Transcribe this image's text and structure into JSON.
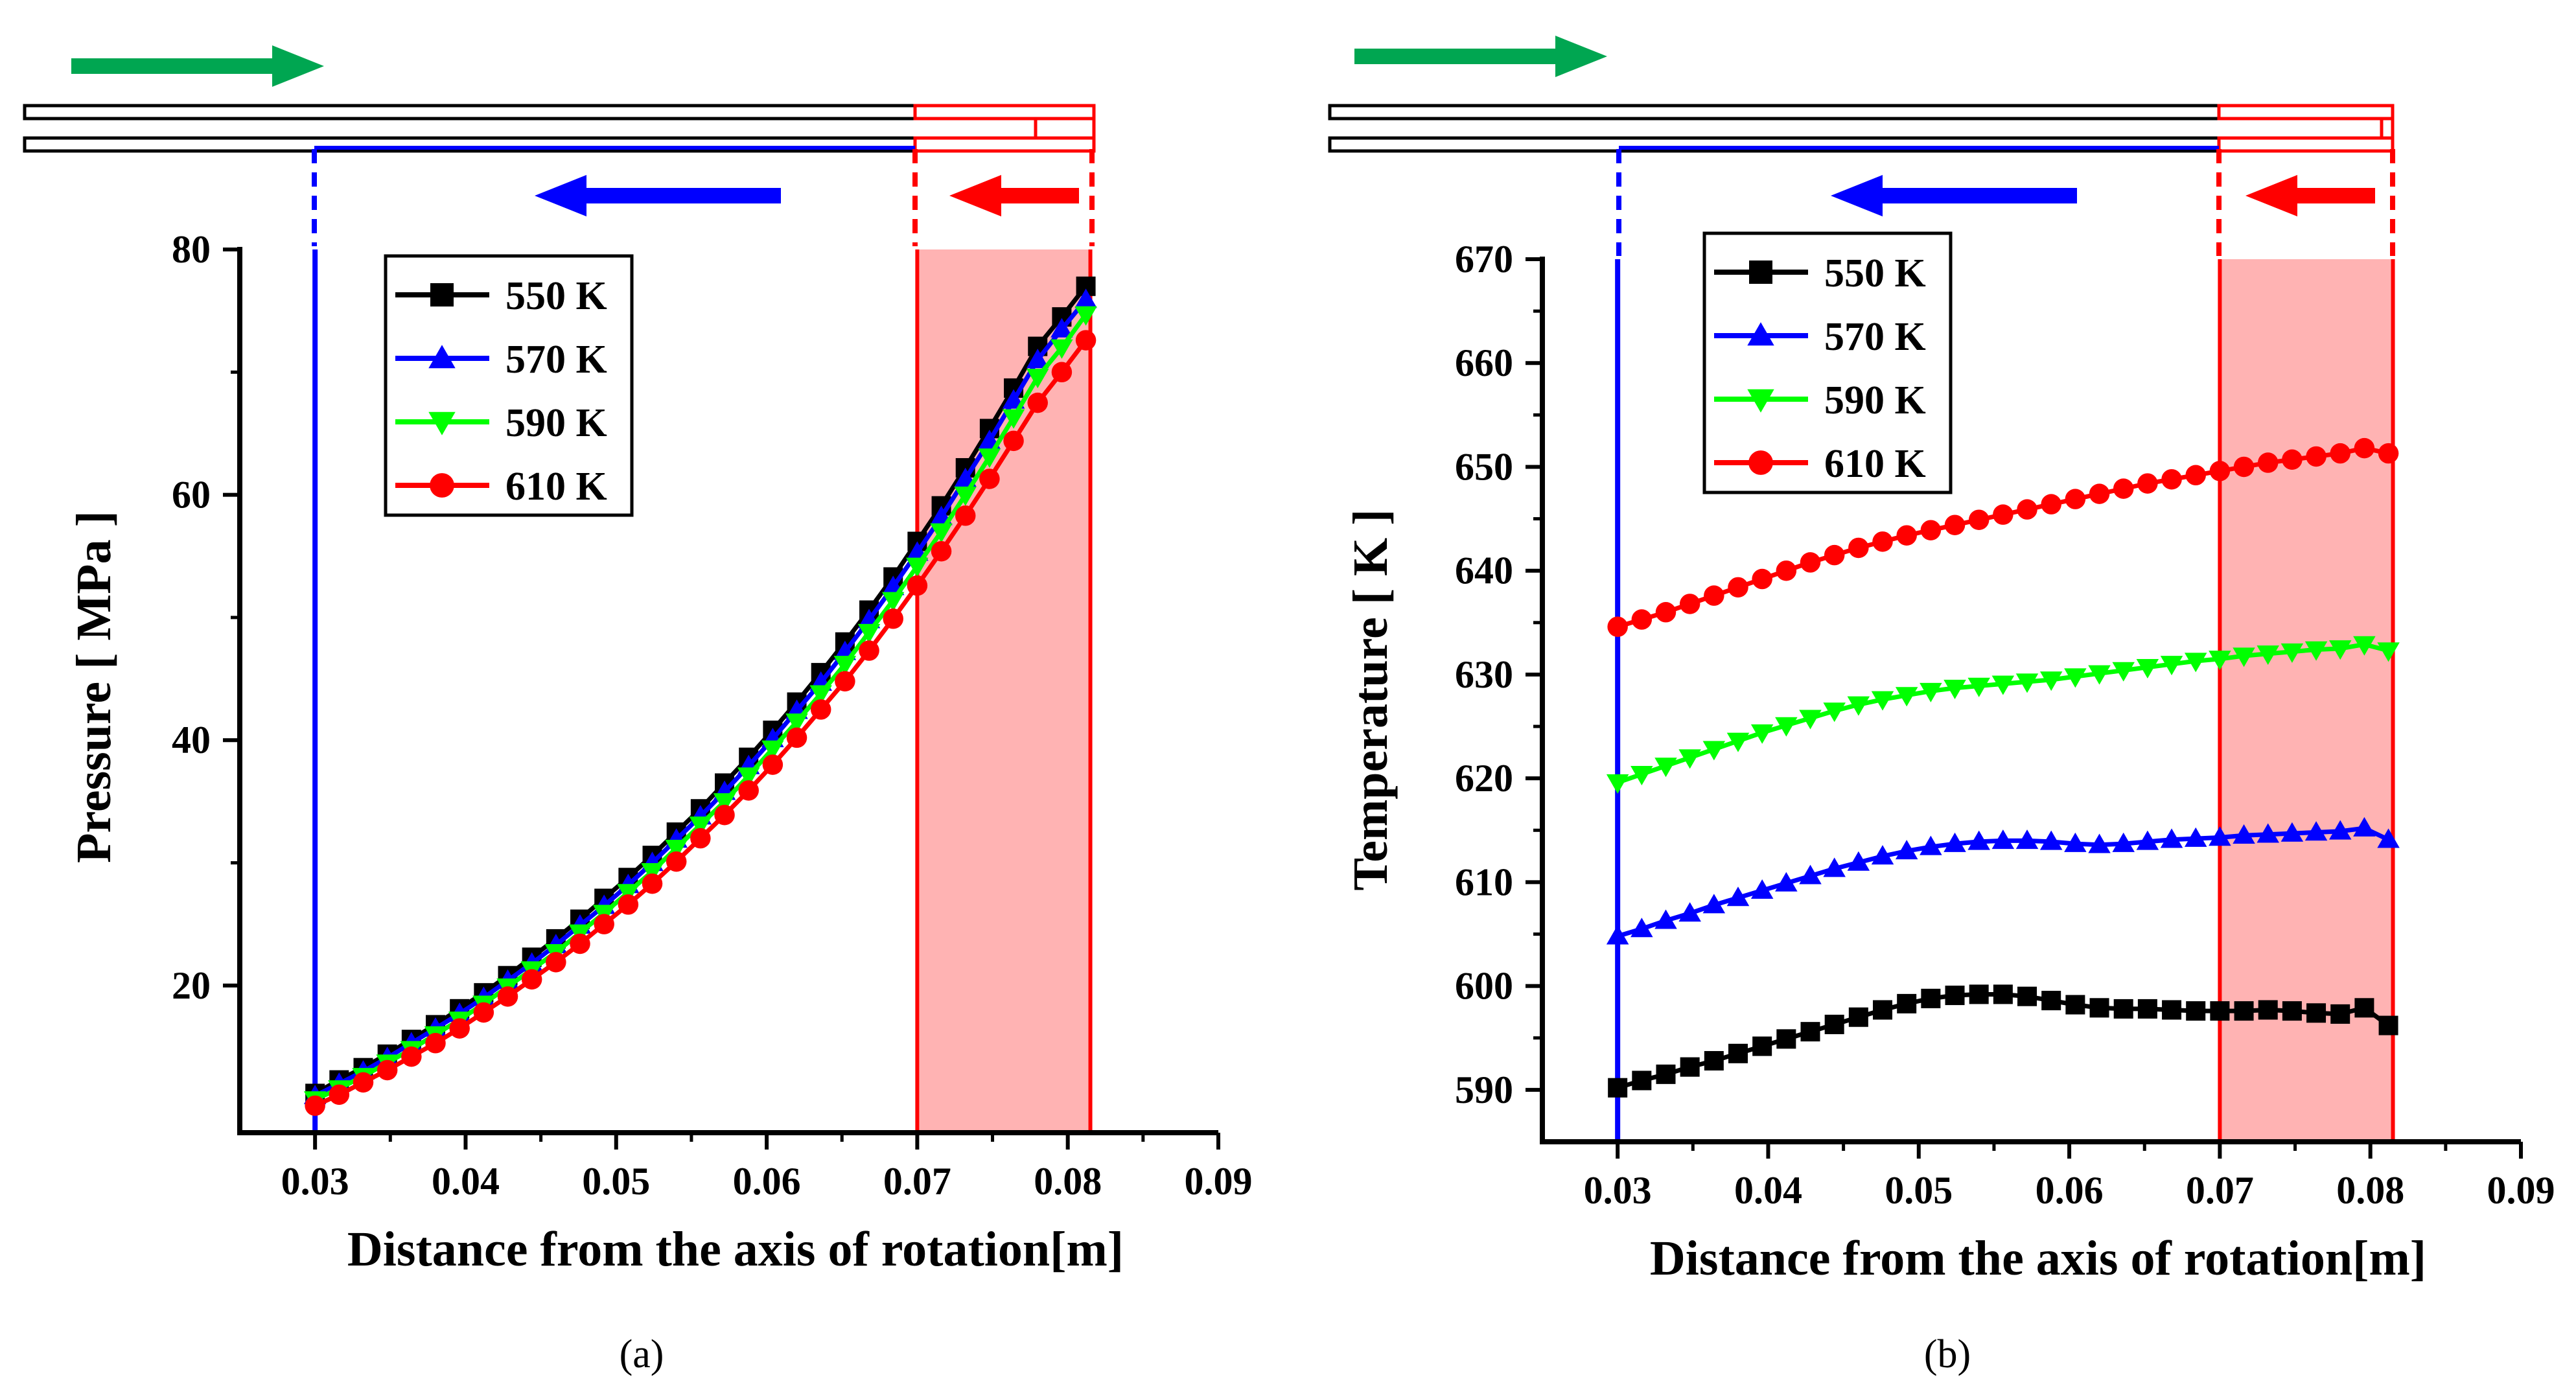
{
  "colors": {
    "black": "#000000",
    "blue": "#0000ff",
    "green": "#00ff00",
    "red": "#ff0000",
    "arrow_green": "#00a651",
    "shade": "#ffb3b3"
  },
  "chart_data": [
    {
      "type": "line",
      "panel_label": "(a)",
      "xlabel": "Distance from the axis of rotation[m]",
      "ylabel": "Pressure [ MPa ]",
      "xlim": [
        0.025,
        0.09
      ],
      "ylim": [
        8,
        80
      ],
      "xticks": [
        0.03,
        0.04,
        0.05,
        0.06,
        0.07,
        0.08,
        0.09
      ],
      "yticks": [
        20,
        40,
        60,
        80
      ],
      "shaded_region": [
        0.07,
        0.0815
      ],
      "blue_marker_x": 0.03,
      "legend_position": "top-left",
      "x": [
        0.03,
        0.0316,
        0.0332,
        0.0348,
        0.0364,
        0.038,
        0.0396,
        0.0412,
        0.0428,
        0.0444,
        0.046,
        0.0476,
        0.0492,
        0.0508,
        0.0524,
        0.054,
        0.0556,
        0.0572,
        0.0588,
        0.0604,
        0.062,
        0.0636,
        0.0652,
        0.0668,
        0.0684,
        0.07,
        0.0716,
        0.0732,
        0.0748,
        0.0764,
        0.078,
        0.0796,
        0.0812
      ],
      "series": [
        {
          "name": "550 K",
          "marker": "square",
          "values": [
            11.2,
            12.3,
            13.3,
            14.4,
            15.6,
            16.8,
            18.1,
            19.4,
            20.8,
            22.3,
            23.8,
            25.4,
            27.1,
            28.8,
            30.6,
            32.5,
            34.4,
            36.5,
            38.6,
            40.8,
            43.1,
            45.5,
            48.0,
            50.6,
            53.3,
            56.2,
            59.1,
            62.2,
            65.4,
            68.7,
            72.1,
            74.5,
            77.0
          ]
        },
        {
          "name": "570 K",
          "marker": "triangle-up",
          "values": [
            11.0,
            12.0,
            13.0,
            14.1,
            15.3,
            16.5,
            17.7,
            19.0,
            20.4,
            21.8,
            23.3,
            24.9,
            26.5,
            28.2,
            30.0,
            31.9,
            33.8,
            35.8,
            37.9,
            40.1,
            42.4,
            44.7,
            47.2,
            49.8,
            52.5,
            55.3,
            58.2,
            61.3,
            64.4,
            67.7,
            71.0,
            73.5,
            75.9
          ]
        },
        {
          "name": "590 K",
          "marker": "triangle-down",
          "values": [
            10.7,
            11.6,
            12.6,
            13.7,
            14.8,
            16.0,
            17.2,
            18.5,
            19.9,
            21.3,
            22.7,
            24.3,
            25.9,
            27.6,
            29.3,
            31.2,
            33.1,
            35.0,
            37.1,
            39.3,
            41.5,
            43.8,
            46.2,
            48.8,
            51.4,
            54.2,
            57.0,
            60.0,
            63.1,
            66.3,
            69.6,
            72.0,
            74.7
          ]
        },
        {
          "name": "610 K",
          "marker": "circle",
          "values": [
            10.2,
            11.1,
            12.1,
            13.1,
            14.2,
            15.3,
            16.5,
            17.8,
            19.1,
            20.5,
            21.9,
            23.4,
            25.0,
            26.6,
            28.3,
            30.1,
            32.0,
            33.9,
            35.9,
            38.0,
            40.2,
            42.5,
            44.8,
            47.3,
            49.9,
            52.6,
            55.4,
            58.3,
            61.3,
            64.4,
            67.5,
            70.0,
            72.6
          ]
        }
      ]
    },
    {
      "type": "line",
      "panel_label": "(b)",
      "xlabel": "Distance from the axis of rotation[m]",
      "ylabel": "Temperature [ K ]",
      "xlim": [
        0.025,
        0.09
      ],
      "ylim": [
        585,
        670
      ],
      "xticks": [
        0.03,
        0.04,
        0.05,
        0.06,
        0.07,
        0.08,
        0.09
      ],
      "yticks": [
        590,
        600,
        610,
        620,
        630,
        640,
        650,
        660,
        670
      ],
      "shaded_region": [
        0.07,
        0.0815
      ],
      "blue_marker_x": 0.03,
      "legend_position": "top-left",
      "x": [
        0.03,
        0.0316,
        0.0332,
        0.0348,
        0.0364,
        0.038,
        0.0396,
        0.0412,
        0.0428,
        0.0444,
        0.046,
        0.0476,
        0.0492,
        0.0508,
        0.0524,
        0.054,
        0.0556,
        0.0572,
        0.0588,
        0.0604,
        0.062,
        0.0636,
        0.0652,
        0.0668,
        0.0684,
        0.07,
        0.0716,
        0.0732,
        0.0748,
        0.0764,
        0.078,
        0.0796,
        0.0812
      ],
      "series": [
        {
          "name": "550 K",
          "marker": "square",
          "values": [
            590.2,
            590.9,
            591.5,
            592.2,
            592.8,
            593.5,
            594.2,
            594.9,
            595.6,
            596.3,
            597.0,
            597.7,
            598.3,
            598.8,
            599.1,
            599.2,
            599.2,
            599.0,
            598.6,
            598.2,
            597.9,
            597.8,
            597.8,
            597.7,
            597.6,
            597.6,
            597.6,
            597.7,
            597.6,
            597.4,
            597.3,
            597.9,
            596.2
          ]
        },
        {
          "name": "570 K",
          "marker": "triangle-up",
          "values": [
            604.8,
            605.5,
            606.3,
            607.0,
            607.8,
            608.5,
            609.2,
            609.9,
            610.6,
            611.3,
            611.9,
            612.5,
            613.0,
            613.4,
            613.7,
            613.9,
            614.0,
            614.0,
            613.9,
            613.7,
            613.6,
            613.7,
            613.9,
            614.1,
            614.2,
            614.3,
            614.5,
            614.6,
            614.7,
            614.8,
            614.9,
            615.2,
            614.1
          ]
        },
        {
          "name": "590 K",
          "marker": "triangle-down",
          "values": [
            619.6,
            620.4,
            621.2,
            622.0,
            622.8,
            623.6,
            624.4,
            625.1,
            625.8,
            626.5,
            627.1,
            627.6,
            628.0,
            628.4,
            628.7,
            628.9,
            629.1,
            629.3,
            629.5,
            629.8,
            630.1,
            630.4,
            630.7,
            631.0,
            631.3,
            631.5,
            631.8,
            632.0,
            632.2,
            632.4,
            632.5,
            632.9,
            632.3
          ]
        },
        {
          "name": "610 K",
          "marker": "circle",
          "values": [
            634.6,
            635.3,
            636.0,
            636.8,
            637.6,
            638.4,
            639.2,
            640.0,
            640.8,
            641.5,
            642.2,
            642.8,
            643.4,
            643.9,
            644.4,
            644.9,
            645.4,
            645.9,
            646.4,
            646.9,
            647.4,
            647.9,
            648.4,
            648.8,
            649.2,
            649.6,
            650.0,
            650.4,
            650.7,
            651.0,
            651.3,
            651.8,
            651.3
          ]
        }
      ]
    }
  ]
}
